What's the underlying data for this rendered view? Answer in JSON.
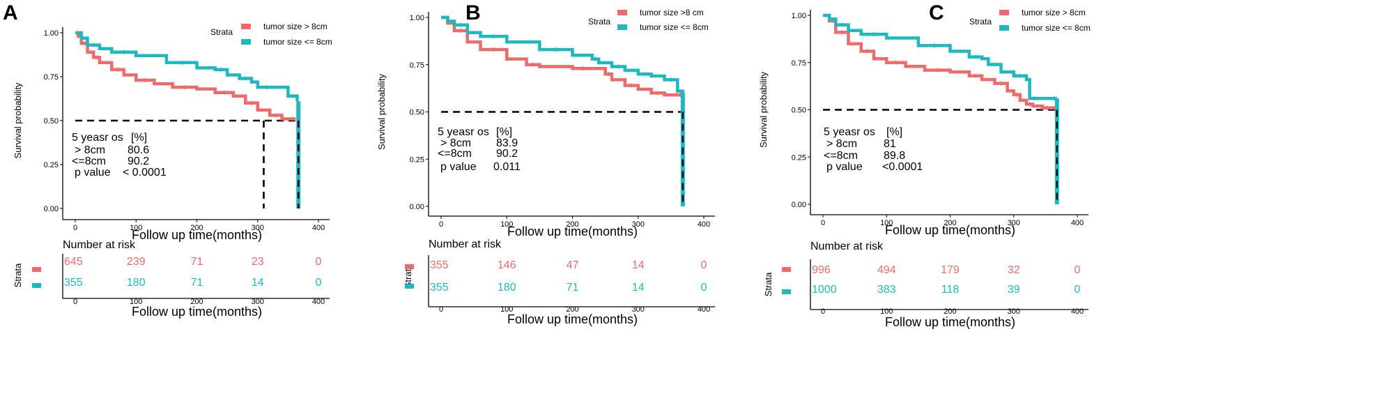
{
  "chart_data": [
    {
      "type": "line",
      "panel": "A",
      "title": "",
      "xlabel": "Follow up time(months)",
      "ylabel": "Survival probability",
      "xlim": [
        0,
        400
      ],
      "ylim": [
        0,
        1
      ],
      "x_ticks": [
        "0",
        "100",
        "200",
        "300",
        "400"
      ],
      "y_ticks": [
        "0.00",
        "0.25",
        "0.50",
        "0.75",
        "1.00"
      ],
      "legend_title": "Strata",
      "median_ref": {
        "y": 0.5,
        "x_red": 310,
        "x_teal": 367
      },
      "series": [
        {
          "name": "tumor size > 8cm",
          "color": "#ee6b6b",
          "x": [
            0,
            5,
            10,
            20,
            30,
            40,
            60,
            80,
            100,
            130,
            160,
            200,
            230,
            260,
            280,
            300,
            320,
            340,
            360
          ],
          "y": [
            1.0,
            0.98,
            0.94,
            0.89,
            0.86,
            0.83,
            0.79,
            0.76,
            0.73,
            0.71,
            0.69,
            0.68,
            0.66,
            0.64,
            0.6,
            0.56,
            0.53,
            0.51,
            0.5
          ]
        },
        {
          "name": "tumor size <= 8cm",
          "color": "#1fb8bf",
          "x": [
            0,
            10,
            20,
            40,
            60,
            100,
            150,
            200,
            230,
            250,
            270,
            290,
            300,
            330,
            350,
            365
          ],
          "y": [
            1.0,
            0.97,
            0.93,
            0.91,
            0.89,
            0.87,
            0.83,
            0.8,
            0.79,
            0.76,
            0.74,
            0.72,
            0.69,
            0.69,
            0.64,
            0.61
          ]
        }
      ],
      "annotation": {
        "header_label": "5 yeasr os",
        "header_unit": "[%]",
        "row1_label": "> 8cm",
        "row1_value": "80.6",
        "row2_label": "<=8cm",
        "row2_value": "90.2",
        "p_label": "p value",
        "p_value": "< 0.0001"
      },
      "risk_table": {
        "title": "Number at risk",
        "ylabel": "Strata",
        "xlabel": "Follow up time(months)",
        "rows": [
          [
            "645",
            "239",
            "71",
            "23",
            "0"
          ],
          [
            "355",
            "180",
            "71",
            "14",
            "0"
          ]
        ]
      }
    },
    {
      "type": "line",
      "panel": "B",
      "title": "",
      "xlabel": "Follow up time(months)",
      "ylabel": "Survival probability",
      "xlim": [
        0,
        400
      ],
      "ylim": [
        0,
        1
      ],
      "x_ticks": [
        "0",
        "100",
        "200",
        "300",
        "400"
      ],
      "y_ticks": [
        "0.00",
        "0.25",
        "0.50",
        "0.75",
        "1.00"
      ],
      "legend_title": "Strata",
      "median_ref": {
        "y": 0.5,
        "x_red": 368,
        "x_teal": 368
      },
      "series": [
        {
          "name": "tumor size >8 cm",
          "color": "#ee6b6b",
          "x": [
            0,
            10,
            20,
            40,
            60,
            100,
            130,
            150,
            200,
            230,
            250,
            260,
            280,
            300,
            320,
            340,
            360,
            368
          ],
          "y": [
            1.0,
            0.97,
            0.93,
            0.87,
            0.83,
            0.78,
            0.75,
            0.74,
            0.73,
            0.73,
            0.7,
            0.67,
            0.64,
            0.62,
            0.6,
            0.59,
            0.59,
            0.59
          ]
        },
        {
          "name": "tumor size <= 8cm",
          "color": "#1fb8bf",
          "x": [
            0,
            10,
            20,
            40,
            60,
            100,
            150,
            200,
            230,
            240,
            260,
            280,
            300,
            320,
            340,
            360,
            368
          ],
          "y": [
            1.0,
            0.98,
            0.96,
            0.92,
            0.9,
            0.87,
            0.83,
            0.8,
            0.78,
            0.76,
            0.74,
            0.72,
            0.7,
            0.69,
            0.67,
            0.61,
            0.6
          ]
        }
      ],
      "annotation": {
        "header_label": "5 yeasr os",
        "header_unit": "[%]",
        "row1_label": "> 8cm",
        "row1_value": "83.9",
        "row2_label": "<=8cm",
        "row2_value": "90.2",
        "p_label": "p value",
        "p_value": "0.011"
      },
      "risk_table": {
        "title": "Number at risk",
        "ylabel": "Strata",
        "xlabel": "Follow up time(months)",
        "rows": [
          [
            "355",
            "146",
            "47",
            "14",
            "0"
          ],
          [
            "355",
            "180",
            "71",
            "14",
            "0"
          ]
        ]
      }
    },
    {
      "type": "line",
      "panel": "C",
      "title": "",
      "xlabel": "Follow up time(months)",
      "ylabel": "Survival probability",
      "xlim": [
        0,
        400
      ],
      "ylim": [
        0,
        1
      ],
      "x_ticks": [
        "0",
        "100",
        "200",
        "300",
        "400"
      ],
      "y_ticks": [
        "0.00",
        "0.25",
        "0.50",
        "0.75",
        "1.00"
      ],
      "legend_title": "Strata",
      "median_ref": {
        "y": 0.5,
        "x_red": 368,
        "x_teal": 368
      },
      "series": [
        {
          "name": "tumor size > 8cm",
          "color": "#ee6b6b",
          "x": [
            0,
            10,
            20,
            40,
            60,
            80,
            100,
            130,
            160,
            200,
            230,
            250,
            270,
            290,
            300,
            310,
            320,
            330,
            345,
            360,
            368
          ],
          "y": [
            1.0,
            0.97,
            0.91,
            0.85,
            0.81,
            0.77,
            0.75,
            0.73,
            0.71,
            0.7,
            0.68,
            0.66,
            0.64,
            0.6,
            0.58,
            0.55,
            0.53,
            0.52,
            0.51,
            0.51,
            0.51
          ]
        },
        {
          "name": "tumor size <= 8cm",
          "color": "#1fb8bf",
          "x": [
            0,
            10,
            20,
            40,
            60,
            100,
            150,
            200,
            230,
            250,
            260,
            280,
            300,
            320,
            325,
            340,
            360,
            368
          ],
          "y": [
            1.0,
            0.98,
            0.95,
            0.92,
            0.9,
            0.88,
            0.84,
            0.81,
            0.78,
            0.77,
            0.74,
            0.7,
            0.68,
            0.66,
            0.56,
            0.56,
            0.56,
            0.56
          ]
        }
      ],
      "annotation": {
        "header_label": "5 yeasr os",
        "header_unit": "[%]",
        "row1_label": "> 8cm",
        "row1_value": "81",
        "row2_label": "<=8cm",
        "row2_value": "89.8",
        "p_label": "p value",
        "p_value": "<0.0001"
      },
      "risk_table": {
        "title": "Number at risk",
        "ylabel": "Strata",
        "xlabel": "Follow up time(months)",
        "rows": [
          [
            "996",
            "494",
            "179",
            "32",
            "0"
          ],
          [
            "1000",
            "383",
            "118",
            "39",
            "0"
          ]
        ]
      }
    }
  ]
}
